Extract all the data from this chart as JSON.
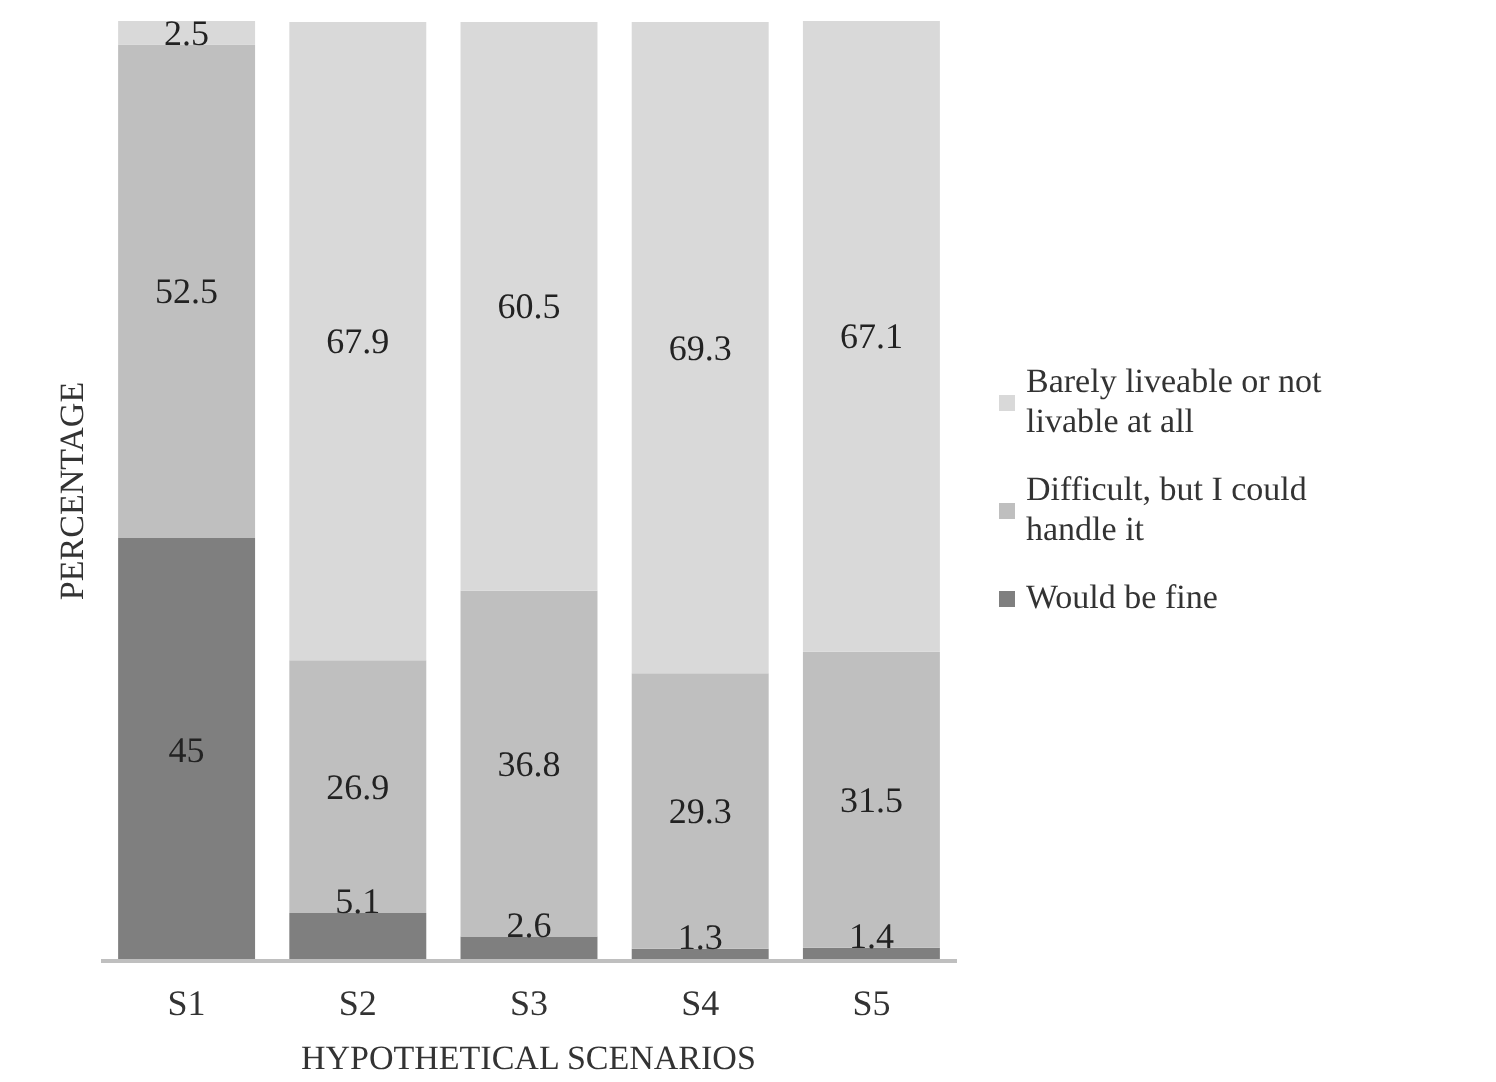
{
  "chart_data": {
    "type": "bar",
    "stacked": true,
    "xlabel": "HYPOTHETICAL SCENARIOS",
    "ylabel": "PERCENTAGE",
    "categories": [
      "S1",
      "S2",
      "S3",
      "S4",
      "S5"
    ],
    "series": [
      {
        "name": "Would be fine",
        "color": "#7f7f7f",
        "values": [
          45,
          5.1,
          2.6,
          1.3,
          1.4
        ]
      },
      {
        "name": "Difficult, but I could handle it",
        "color": "#bfbfbf",
        "values": [
          52.5,
          26.9,
          36.8,
          29.3,
          31.5
        ]
      },
      {
        "name": "Barely liveable or not livable at all",
        "color": "#d9d9d9",
        "values": [
          2.5,
          67.9,
          60.5,
          69.3,
          67.1
        ]
      }
    ],
    "ylim": [
      0,
      100
    ],
    "tick_labels": "x",
    "data_labels": true,
    "legend": "right",
    "grid": false
  }
}
